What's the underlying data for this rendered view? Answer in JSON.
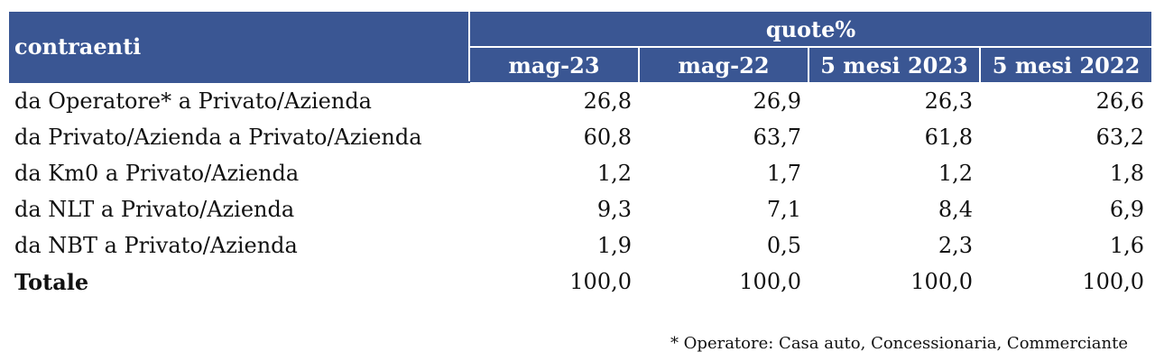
{
  "header": {
    "label_column": "contraenti",
    "group_label": "quote%",
    "columns": [
      "mag-23",
      "mag-22",
      "5 mesi 2023",
      "5 mesi 2022"
    ]
  },
  "rows": [
    {
      "label": "da Operatore* a Privato/Azienda",
      "values": [
        "26,8",
        "26,9",
        "26,3",
        "26,6"
      ]
    },
    {
      "label": "da Privato/Azienda a Privato/Azienda",
      "values": [
        "60,8",
        "63,7",
        "61,8",
        "63,2"
      ]
    },
    {
      "label": "da Km0 a Privato/Azienda",
      "values": [
        "1,2",
        "1,7",
        "1,2",
        "1,8"
      ]
    },
    {
      "label": "da NLT a Privato/Azienda",
      "values": [
        "9,3",
        "7,1",
        "8,4",
        "6,9"
      ]
    },
    {
      "label": "da NBT a Privato/Azienda",
      "values": [
        "1,9",
        "0,5",
        "2,3",
        "1,6"
      ]
    },
    {
      "label": "Totale",
      "values": [
        "100,0",
        "100,0",
        "100,0",
        "100,0"
      ]
    }
  ],
  "footnote": "* Operatore: Casa auto, Concessionaria, Commerciante",
  "colors": {
    "header_bg": "#3a5693",
    "header_text": "#ffffff"
  }
}
